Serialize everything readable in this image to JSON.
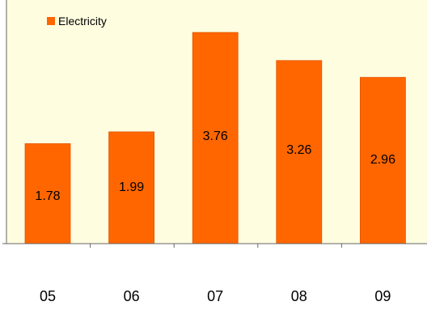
{
  "colors": {
    "plot_background": "#FFFDE0",
    "bar_fill": "#FF6600",
    "bar_stroke": "#E05500",
    "axis": "#666666",
    "text": "#000000"
  },
  "chart_data": {
    "type": "bar",
    "title": "",
    "xlabel": "",
    "ylabel": "",
    "categories": [
      "05",
      "06",
      "07",
      "08",
      "09"
    ],
    "series": [
      {
        "name": "Electricity",
        "values": [
          1.78,
          1.99,
          3.76,
          3.26,
          2.96
        ],
        "data_labels": [
          "1.78",
          "1.99",
          "3.76",
          "3.26",
          "2.96"
        ]
      }
    ],
    "ylim": [
      0,
      4
    ],
    "grid": false,
    "legend": "top-left"
  }
}
